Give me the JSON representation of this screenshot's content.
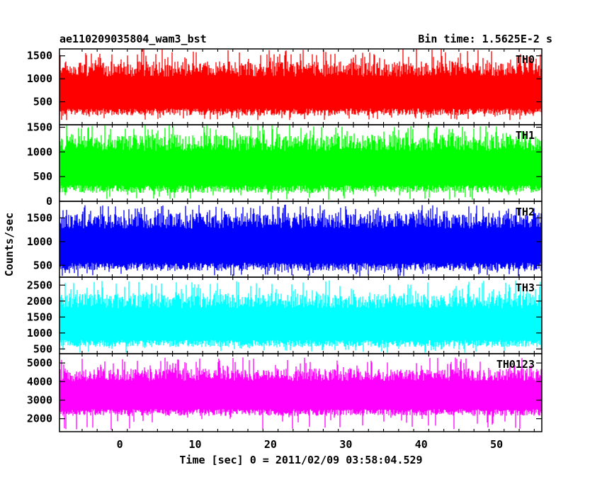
{
  "chart_data": {
    "type": "line",
    "title": "ae110209035804_wam3_bst",
    "subtitle": "Bin time: 1.5625E-2 s",
    "xlabel": "Time [sec] 0 = 2011/02/09 03:58:04.529",
    "ylabel": "Counts/sec",
    "xlim": [
      -8,
      56
    ],
    "x_ticks": [
      0,
      10,
      20,
      30,
      40,
      50
    ],
    "bin_time": 0.015625,
    "data_range": [
      -8,
      56
    ],
    "panels": [
      {
        "name": "TH0",
        "color": "#ff0000",
        "ylim": [
          0,
          1650
        ],
        "y_ticks": [
          500,
          1000,
          1500
        ],
        "mean": 640,
        "low": 200,
        "high": 1380,
        "max": 1650,
        "min": 100
      },
      {
        "name": "TH1",
        "color": "#00ff00",
        "ylim": [
          0,
          1550
        ],
        "y_ticks": [
          0,
          500,
          1000,
          1500
        ],
        "mean": 620,
        "low": 170,
        "high": 1350,
        "max": 1550,
        "min": 30
      },
      {
        "name": "TH2",
        "color": "#0000ff",
        "ylim": [
          250,
          1850
        ],
        "y_ticks": [
          500,
          1000,
          1500
        ],
        "mean": 880,
        "low": 380,
        "high": 1600,
        "max": 1780,
        "min": 260
      },
      {
        "name": "TH3",
        "color": "#00ffff",
        "ylim": [
          350,
          2750
        ],
        "y_ticks": [
          500,
          1000,
          1500,
          2000,
          2500
        ],
        "mean": 1200,
        "low": 560,
        "high": 2250,
        "max": 2650,
        "min": 380
      },
      {
        "name": "TH0123",
        "color": "#ff00ff",
        "ylim": [
          1300,
          5500
        ],
        "y_ticks": [
          2000,
          3000,
          4000,
          5000
        ],
        "mean": 3200,
        "low": 2150,
        "high": 4700,
        "max": 5300,
        "min": 1400
      }
    ]
  }
}
